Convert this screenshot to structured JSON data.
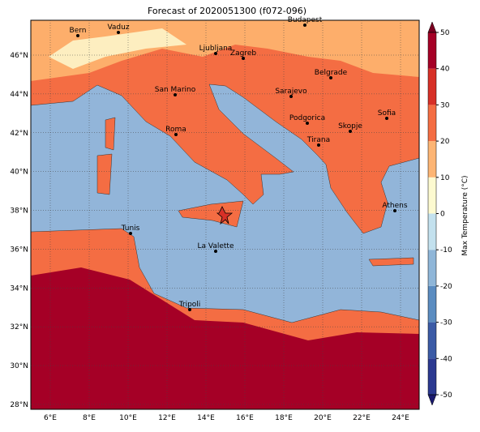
{
  "title": "Forecast of 2020051300 (f072-096)",
  "map": {
    "lon_ticks": [
      {
        "value": 6,
        "label": "6°E"
      },
      {
        "value": 8,
        "label": "8°E"
      },
      {
        "value": 10,
        "label": "10°E"
      },
      {
        "value": 12,
        "label": "12°E"
      },
      {
        "value": 14,
        "label": "14°E"
      },
      {
        "value": 16,
        "label": "16°E"
      },
      {
        "value": 18,
        "label": "18°E"
      },
      {
        "value": 20,
        "label": "20°E"
      },
      {
        "value": 22,
        "label": "22°E"
      },
      {
        "value": 24,
        "label": "24°E"
      }
    ],
    "lat_ticks": [
      {
        "value": 28,
        "label": "28°N"
      },
      {
        "value": 30,
        "label": "30°N"
      },
      {
        "value": 32,
        "label": "32°N"
      },
      {
        "value": 34,
        "label": "34°N"
      },
      {
        "value": 36,
        "label": "36°N"
      },
      {
        "value": 38,
        "label": "38°N"
      },
      {
        "value": 40,
        "label": "40°N"
      },
      {
        "value": 42,
        "label": "42°N"
      },
      {
        "value": 44,
        "label": "44°N"
      },
      {
        "value": 46,
        "label": "46°N"
      }
    ],
    "cities": [
      "Bern",
      "Vaduz",
      "Budapest",
      "Ljubljana",
      "Zagreb",
      "San Marino",
      "Belgrade",
      "Sarajevo",
      "Sofia",
      "Roma",
      "Podgorica",
      "Skopje",
      "Tirana",
      "Athens",
      "Tunis",
      "La Valette",
      "Tripoli"
    ]
  },
  "colorbar": {
    "label": "Max Temperature (°C)",
    "ticks": [
      -50,
      -40,
      -30,
      -20,
      -10,
      0,
      10,
      20,
      30,
      40,
      50
    ],
    "colors": [
      "#2b3990",
      "#3b5ba6",
      "#5b8cc0",
      "#8fb6d8",
      "#c3e1ee",
      "#fdfad0",
      "#fdb574",
      "#f46d43",
      "#d73027",
      "#a50026"
    ],
    "extend_colors": [
      "#1a1a6e",
      "#7a0020"
    ]
  }
}
